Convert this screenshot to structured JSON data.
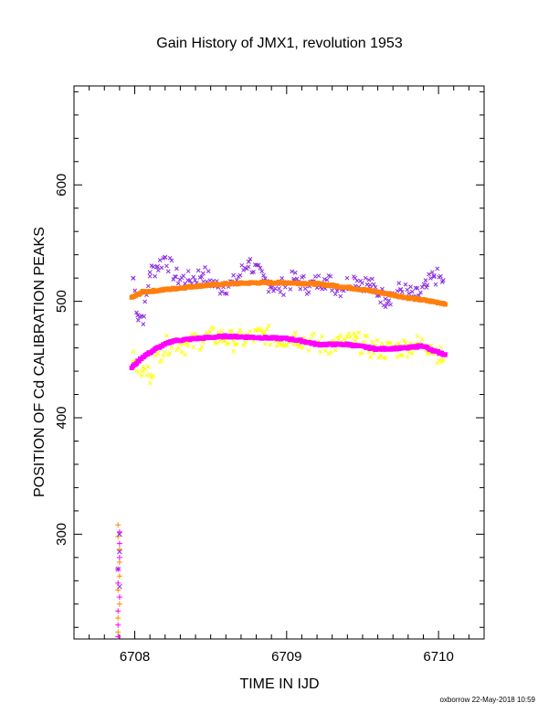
{
  "chart_data": {
    "type": "scatter",
    "title": "Gain History of JMX1, revolution 1953",
    "xlabel": "TIME IN IJD",
    "ylabel": "POSITION OF Cd CALIBRATION PEAKS",
    "xlim": [
      6707.6,
      6710.3
    ],
    "ylim": [
      210,
      685
    ],
    "x_ticks": [
      "6708",
      "6709",
      "6710"
    ],
    "y_ticks": [
      "300",
      "400",
      "500",
      "600"
    ],
    "grid": false,
    "legend": "none",
    "footer": "oxborrow 22-May-2018 10:59",
    "series": [
      {
        "marker": "x",
        "color": "#8a2be2",
        "description": "upper scattered points",
        "x_start": 6707.98,
        "x_end": 6710.05,
        "points": [
          [
            6707.99,
            520
          ],
          [
            6708.02,
            488
          ],
          [
            6708.06,
            487
          ],
          [
            6708.1,
            525
          ],
          [
            6708.15,
            530
          ],
          [
            6708.2,
            538
          ],
          [
            6708.27,
            521
          ],
          [
            6708.35,
            518
          ],
          [
            6708.45,
            524
          ],
          [
            6708.55,
            512
          ],
          [
            6708.65,
            515
          ],
          [
            6708.75,
            534
          ],
          [
            6708.85,
            518
          ],
          [
            6708.95,
            511
          ],
          [
            6709.05,
            519
          ],
          [
            6709.15,
            513
          ],
          [
            6709.25,
            519
          ],
          [
            6709.35,
            511
          ],
          [
            6709.45,
            520
          ],
          [
            6709.55,
            514
          ],
          [
            6709.65,
            502
          ],
          [
            6709.75,
            510
          ],
          [
            6709.85,
            504
          ],
          [
            6709.92,
            512
          ],
          [
            6709.97,
            522
          ],
          [
            6710.03,
            518
          ]
        ]
      },
      {
        "marker": "solid",
        "color": "#ff7f0e",
        "description": "upper fitted track",
        "points": [
          [
            6707.98,
            503
          ],
          [
            6708.05,
            508
          ],
          [
            6708.2,
            510
          ],
          [
            6708.4,
            513
          ],
          [
            6708.6,
            515
          ],
          [
            6708.8,
            516
          ],
          [
            6709.0,
            516
          ],
          [
            6709.2,
            515
          ],
          [
            6709.4,
            512
          ],
          [
            6709.6,
            508
          ],
          [
            6709.8,
            503
          ],
          [
            6710.05,
            498
          ]
        ]
      },
      {
        "marker": "x",
        "color": "#ffff00",
        "description": "lower scattered points",
        "points": [
          [
            6707.99,
            448
          ],
          [
            6708.05,
            440
          ],
          [
            6708.1,
            437
          ],
          [
            6708.15,
            455
          ],
          [
            6708.25,
            466
          ],
          [
            6708.35,
            462
          ],
          [
            6708.45,
            468
          ],
          [
            6708.55,
            470
          ],
          [
            6708.65,
            466
          ],
          [
            6708.75,
            468
          ],
          [
            6708.85,
            472
          ],
          [
            6708.95,
            467
          ],
          [
            6709.05,
            470
          ],
          [
            6709.15,
            465
          ],
          [
            6709.25,
            462
          ],
          [
            6709.35,
            464
          ],
          [
            6709.45,
            466
          ],
          [
            6709.55,
            460
          ],
          [
            6709.65,
            458
          ],
          [
            6709.75,
            460
          ],
          [
            6709.85,
            463
          ],
          [
            6709.95,
            462
          ],
          [
            6710.03,
            450
          ]
        ]
      },
      {
        "marker": "solid",
        "color": "#ff00ff",
        "description": "lower fitted track",
        "points": [
          [
            6707.98,
            443
          ],
          [
            6708.05,
            452
          ],
          [
            6708.15,
            460
          ],
          [
            6708.25,
            466
          ],
          [
            6708.4,
            468
          ],
          [
            6708.6,
            470
          ],
          [
            6708.8,
            469
          ],
          [
            6709.0,
            468
          ],
          [
            6709.1,
            466
          ],
          [
            6709.2,
            463
          ],
          [
            6709.4,
            463
          ],
          [
            6709.6,
            459
          ],
          [
            6709.8,
            460
          ],
          [
            6709.9,
            462
          ],
          [
            6709.95,
            458
          ],
          [
            6710.05,
            454
          ]
        ]
      },
      {
        "marker": "+",
        "color": "#ff8c00",
        "description": "early calibration points",
        "points": [
          [
            6707.89,
            308
          ],
          [
            6707.89,
            298
          ],
          [
            6707.9,
            287
          ],
          [
            6707.9,
            276
          ],
          [
            6707.9,
            264
          ],
          [
            6707.89,
            252
          ],
          [
            6707.9,
            240
          ],
          [
            6707.89,
            228
          ],
          [
            6707.89,
            216
          ]
        ]
      },
      {
        "marker": "+",
        "color": "#ff00ff",
        "description": "early calibration points",
        "points": [
          [
            6707.9,
            302
          ],
          [
            6707.9,
            292
          ],
          [
            6707.9,
            280
          ],
          [
            6707.89,
            270
          ],
          [
            6707.89,
            258
          ],
          [
            6707.9,
            246
          ],
          [
            6707.89,
            234
          ],
          [
            6707.89,
            222
          ],
          [
            6707.89,
            212
          ]
        ]
      },
      {
        "marker": "x",
        "color": "#8a2be2",
        "description": "early calibration points",
        "points": [
          [
            6707.9,
            300
          ],
          [
            6707.9,
            285
          ],
          [
            6707.89,
            270
          ],
          [
            6707.9,
            255
          ]
        ]
      }
    ]
  }
}
